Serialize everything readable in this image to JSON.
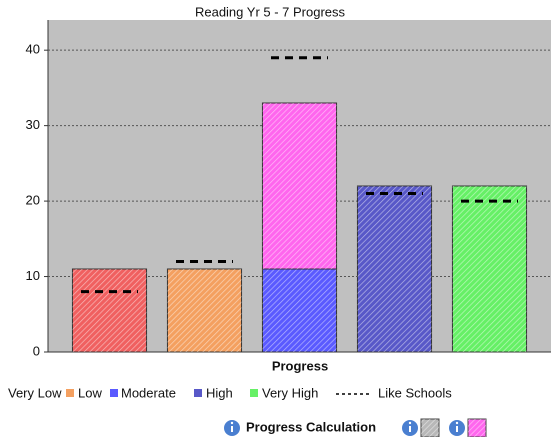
{
  "chart_data": {
    "type": "bar",
    "title": "Reading Yr 5 - 7 Progress",
    "x_label": "Progress",
    "categories": [
      "Very Low",
      "Low",
      "Moderate",
      "High",
      "Very High"
    ],
    "series": [
      {
        "colors": [
          "#f06060",
          "#f4a060",
          "#5a5aff",
          "#5858c8",
          "#66f066"
        ],
        "values": [
          11,
          11,
          11,
          22,
          22
        ]
      },
      {
        "color": "#ff66ee",
        "values": [
          null,
          null,
          22,
          null,
          null
        ]
      },
      {
        "name": "Like Schools",
        "color": "#000000",
        "style": "dashed",
        "values": [
          8,
          12,
          39,
          21,
          20
        ]
      }
    ],
    "ylim": [
      0,
      44
    ],
    "yticks": [
      0,
      10,
      20,
      30,
      40
    ],
    "grid": true,
    "footer": "Progress Calculation"
  }
}
